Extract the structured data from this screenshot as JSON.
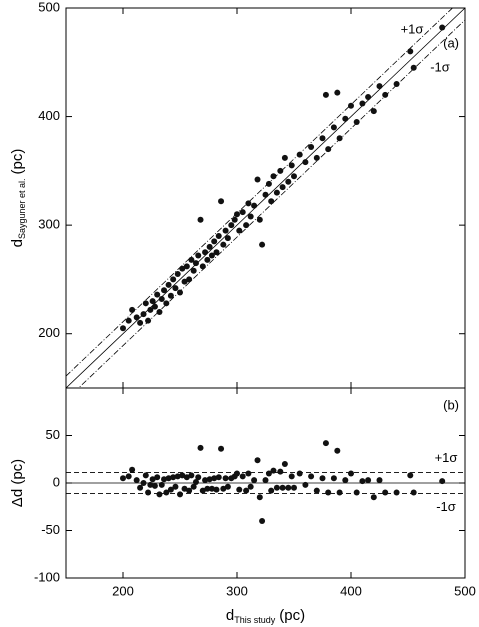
{
  "chart_data": [
    {
      "type": "scatter",
      "panel_label": "(a)",
      "ylabel": {
        "main": "d",
        "sub": "Sayguner et al.",
        "unit": "(pc)"
      },
      "xlim": [
        150,
        500
      ],
      "ylim": [
        150,
        500
      ],
      "xticks": [
        200,
        300,
        400,
        500
      ],
      "yticks": [
        200,
        300,
        400,
        500
      ],
      "color": "#111111",
      "reference_lines": [
        {
          "offset": 0,
          "style": "solid"
        },
        {
          "offset": 11,
          "style": "dashdot",
          "label": "+1σ"
        },
        {
          "offset": -11,
          "style": "dashdot",
          "label": "-1σ"
        }
      ],
      "x": [
        200,
        205,
        208,
        212,
        215,
        218,
        220,
        222,
        224,
        226,
        228,
        230,
        232,
        234,
        236,
        238,
        240,
        242,
        244,
        246,
        248,
        250,
        252,
        254,
        256,
        258,
        260,
        262,
        264,
        266,
        268,
        270,
        272,
        274,
        276,
        278,
        280,
        282,
        284,
        286,
        288,
        290,
        292,
        295,
        298,
        300,
        302,
        305,
        308,
        310,
        312,
        315,
        318,
        320,
        322,
        325,
        328,
        330,
        332,
        335,
        338,
        340,
        342,
        345,
        348,
        350,
        355,
        360,
        365,
        370,
        375,
        378,
        380,
        385,
        388,
        390,
        395,
        400,
        405,
        410,
        415,
        420,
        425,
        430,
        440,
        452,
        455,
        480
      ],
      "values": [
        205,
        212,
        222,
        215,
        210,
        218,
        228,
        212,
        222,
        230,
        225,
        236,
        220,
        232,
        240,
        228,
        245,
        235,
        250,
        242,
        255,
        238,
        260,
        248,
        262,
        250,
        268,
        258,
        265,
        272,
        305,
        262,
        275,
        268,
        280,
        272,
        285,
        275,
        290,
        322,
        282,
        295,
        288,
        300,
        305,
        310,
        295,
        312,
        300,
        320,
        308,
        318,
        342,
        305,
        282,
        328,
        338,
        322,
        345,
        330,
        350,
        335,
        362,
        340,
        355,
        345,
        365,
        358,
        372,
        362,
        380,
        420,
        370,
        390,
        422,
        380,
        398,
        410,
        395,
        412,
        418,
        405,
        428,
        420,
        430,
        460,
        445,
        482
      ]
    },
    {
      "type": "scatter",
      "panel_label": "(b)",
      "ylabel": "Δd (pc)",
      "xlabel": {
        "main": "d",
        "sub": "This study",
        "unit": "(pc)"
      },
      "xlim": [
        150,
        500
      ],
      "ylim": [
        -100,
        100
      ],
      "xticks": [
        200,
        300,
        400,
        500
      ],
      "yticks": [
        -100,
        -50,
        0,
        50
      ],
      "color": "#111111",
      "reference_lines": [
        {
          "offset": 0,
          "style": "solid"
        },
        {
          "offset": 11,
          "style": "dashed",
          "label": "+1σ"
        },
        {
          "offset": -11,
          "style": "dashed",
          "label": "-1σ"
        }
      ],
      "x": [
        200,
        205,
        208,
        212,
        215,
        218,
        220,
        222,
        224,
        226,
        228,
        230,
        232,
        234,
        236,
        238,
        240,
        242,
        244,
        246,
        248,
        250,
        252,
        254,
        256,
        258,
        260,
        262,
        264,
        266,
        268,
        270,
        272,
        274,
        276,
        278,
        280,
        282,
        284,
        286,
        288,
        290,
        292,
        295,
        298,
        300,
        302,
        305,
        308,
        310,
        312,
        315,
        318,
        320,
        322,
        325,
        328,
        330,
        332,
        335,
        338,
        340,
        342,
        345,
        348,
        350,
        355,
        360,
        365,
        370,
        375,
        378,
        380,
        385,
        388,
        390,
        395,
        400,
        405,
        410,
        415,
        420,
        425,
        430,
        440,
        452,
        455,
        480
      ],
      "values": [
        5,
        7,
        14,
        3,
        -5,
        0,
        8,
        -10,
        -2,
        4,
        -3,
        6,
        -12,
        -2,
        4,
        -10,
        5,
        -7,
        6,
        -4,
        7,
        -12,
        8,
        -6,
        6,
        -8,
        8,
        -4,
        1,
        6,
        37,
        -8,
        3,
        -6,
        4,
        -6,
        5,
        -7,
        6,
        36,
        -6,
        5,
        -4,
        5,
        7,
        10,
        -7,
        7,
        -8,
        10,
        -4,
        3,
        24,
        -15,
        -40,
        3,
        10,
        -8,
        13,
        -5,
        12,
        -5,
        20,
        -5,
        7,
        -5,
        10,
        -2,
        7,
        -8,
        5,
        42,
        -10,
        5,
        34,
        -10,
        3,
        10,
        -10,
        2,
        3,
        -15,
        3,
        -10,
        -10,
        8,
        -10,
        2
      ]
    }
  ]
}
